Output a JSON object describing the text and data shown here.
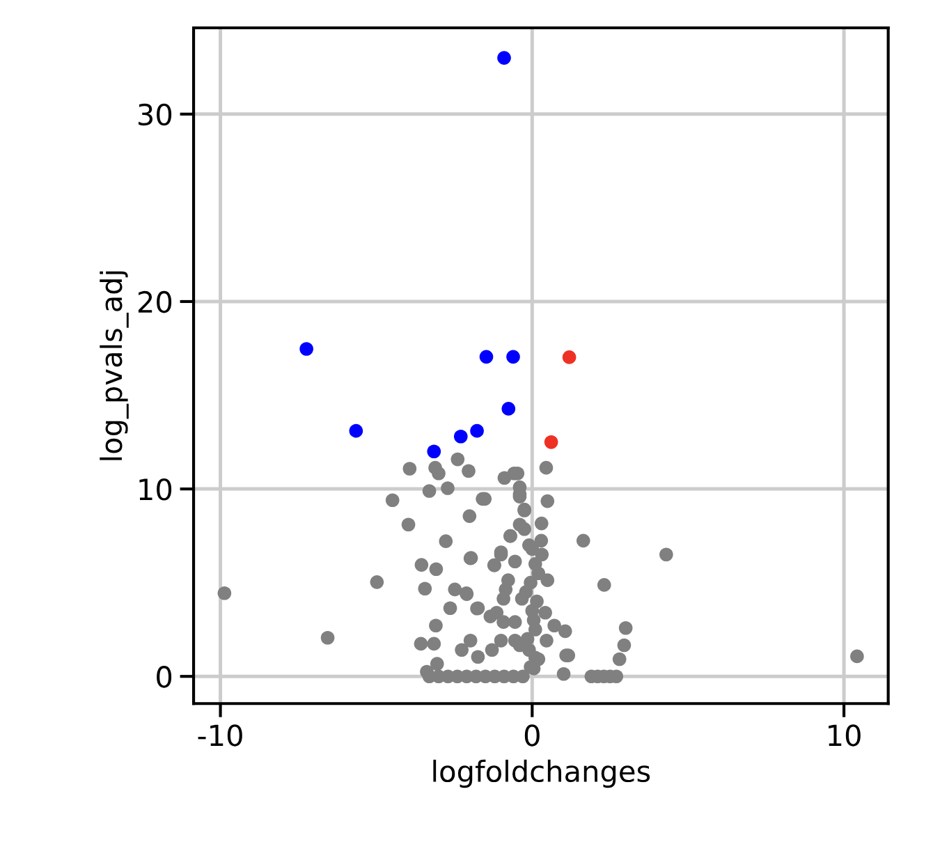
{
  "chart_data": {
    "type": "scatter",
    "xlabel": "logfoldchanges",
    "ylabel": "log_pvals_adj",
    "xlim": [
      -10.86,
      11.42
    ],
    "ylim": [
      -1.45,
      34.6
    ],
    "xticks": [
      -10,
      0,
      10
    ],
    "yticks": [
      0,
      10,
      20,
      30
    ],
    "grid": true,
    "marker": "circle",
    "series": [
      {
        "color": "#808080",
        "x": [
          -3.93,
          -3.11,
          -3.0,
          -2.39,
          -2.04,
          -3.3,
          -2.71,
          -4.48,
          -3.97,
          -2.77,
          -2.01,
          -1.59,
          -3.55,
          -3.08,
          -1.98,
          -4.98,
          -3.44,
          -2.48,
          -2.1,
          -2.63,
          -1.77,
          -1.34,
          -1.21,
          -1.0,
          -0.7,
          -0.89,
          -0.58,
          -0.4,
          -0.4,
          -0.25,
          -9.87,
          -6.56,
          -3.09,
          -3.57,
          -3.15,
          -1.98,
          -2.26,
          -3.05,
          -3.38,
          -3.3,
          -3.0,
          -2.7,
          -2.4,
          -2.1,
          -1.8,
          -1.5,
          -1.2,
          -0.9,
          -0.6,
          -0.3,
          -1.29,
          -1.74,
          -1.0,
          -1.14,
          -0.92,
          -0.77,
          -0.55,
          -0.4,
          -0.33,
          -0.55,
          -0.4,
          0.45,
          0.49,
          0.3,
          0.29,
          0.31,
          1.64,
          2.31,
          4.3,
          3.0,
          2.95,
          2.8,
          1.9,
          2.1,
          2.3,
          2.5,
          2.7,
          1.06,
          0.71,
          1.09,
          1.01,
          0.49,
          0.42,
          0.46,
          -1.96,
          -2.11,
          -1.74,
          -1.52,
          -1.22,
          -1.0,
          -0.7,
          -0.25,
          -0.25,
          -0.4,
          -0.47,
          -0.85,
          -0.92,
          -0.55,
          -0.1,
          0.2,
          0.05,
          -0.05,
          0.1,
          -0.15,
          0.05,
          0.15,
          -0.05,
          0.1,
          -0.1,
          0.1,
          0.0,
          -0.2,
          0.2,
          0.0,
          1.16,
          10.42
        ],
        "values": [
          11.08,
          11.13,
          10.83,
          11.58,
          10.96,
          9.89,
          10.04,
          9.4,
          8.1,
          7.21,
          8.55,
          9.47,
          5.95,
          5.72,
          6.3,
          5.03,
          4.68,
          4.64,
          4.39,
          3.64,
          3.62,
          3.2,
          5.93,
          6.62,
          7.49,
          10.59,
          10.83,
          10.09,
          9.59,
          8.9,
          4.44,
          2.06,
          2.71,
          1.74,
          1.74,
          1.91,
          1.41,
          0.67,
          0.25,
          0,
          0,
          0,
          0,
          0,
          0,
          0,
          0,
          0,
          0,
          0,
          1.41,
          1.04,
          1.91,
          3.4,
          4.14,
          5.13,
          6.13,
          8.1,
          4.14,
          2.9,
          1.66,
          11.13,
          9.35,
          8.16,
          7.24,
          6.5,
          7.24,
          4.88,
          6.5,
          2.58,
          1.66,
          0.92,
          0,
          0,
          0,
          0,
          0,
          2.41,
          2.71,
          1.12,
          0.13,
          5.13,
          3.4,
          1.91,
          6.32,
          4.44,
          3.64,
          9.47,
          5.93,
          6.5,
          7.49,
          7.86,
          8.85,
          9.72,
          10.83,
          4.64,
          2.9,
          1.91,
          1.41,
          0.92,
          0.42,
          0.5,
          1.0,
          2.0,
          3.0,
          4.0,
          5.0,
          6.0,
          7.0,
          2.5,
          3.5,
          4.5,
          5.5,
          6.8,
          1.12,
          1.07
        ]
      },
      {
        "color": "#0000ff",
        "x": [
          -0.9,
          -7.24,
          -1.47,
          -0.61,
          -0.76,
          -5.65,
          -2.29,
          -1.77,
          -3.15
        ],
        "values": [
          33.0,
          17.47,
          17.05,
          17.05,
          14.28,
          13.1,
          12.8,
          13.1,
          12.0
        ]
      },
      {
        "color": "#ee3124",
        "x": [
          1.19,
          0.61
        ],
        "values": [
          17.03,
          12.5
        ]
      }
    ]
  }
}
